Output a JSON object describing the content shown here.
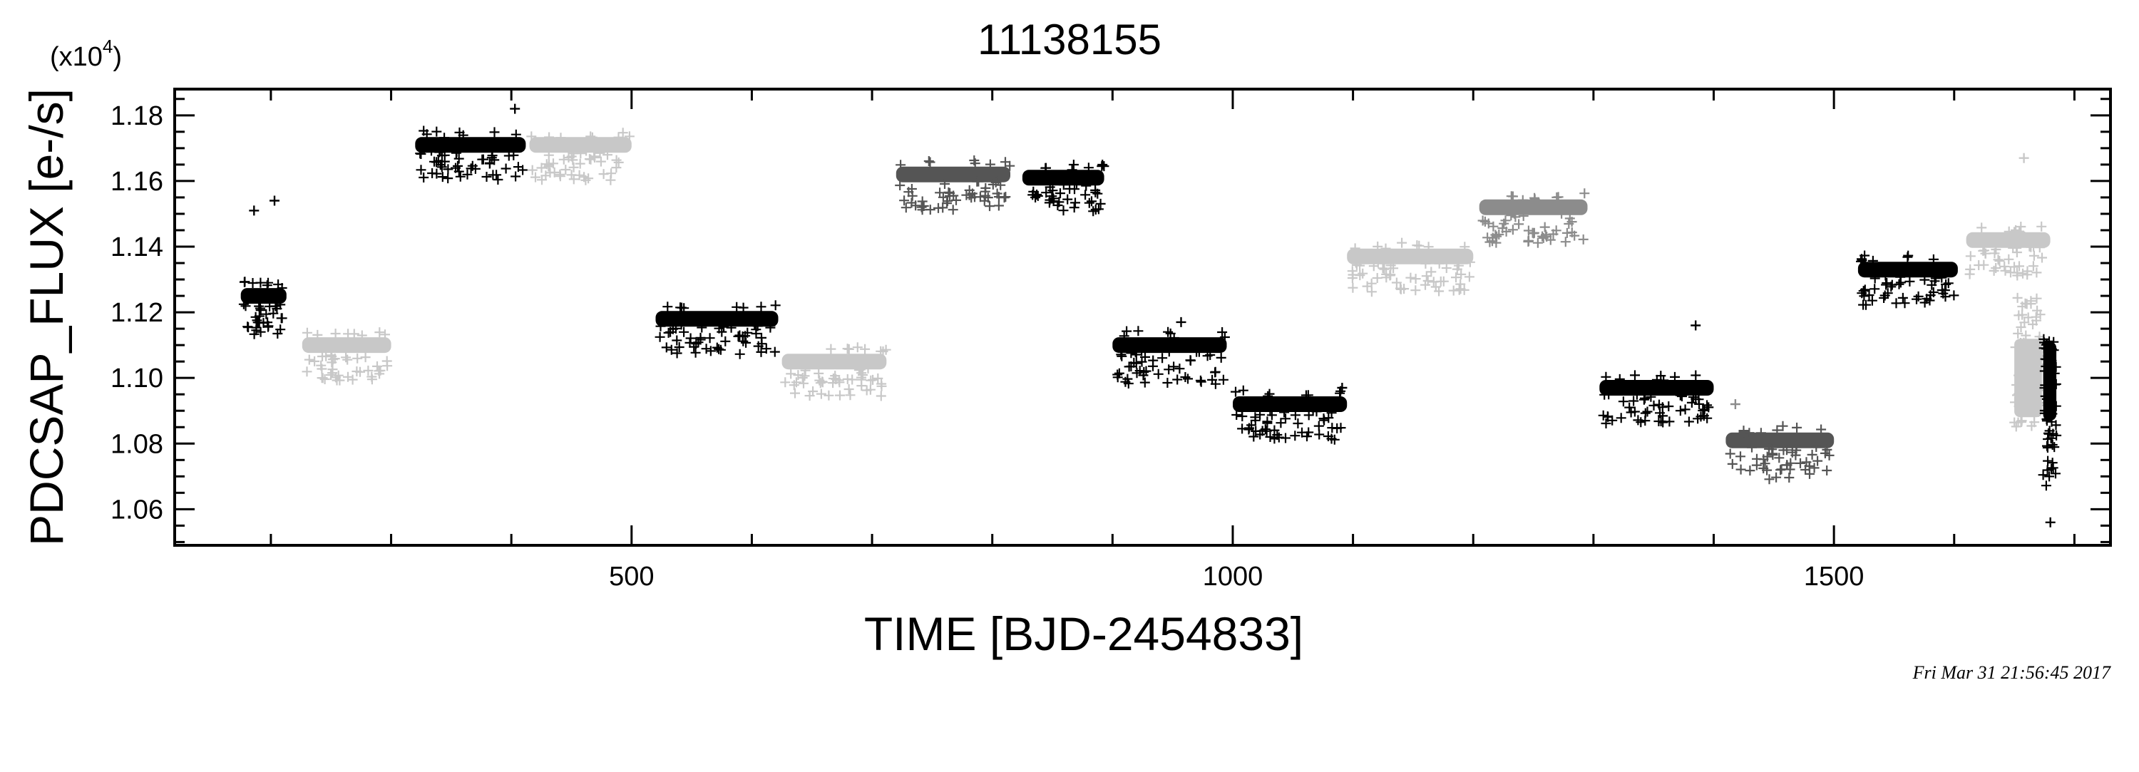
{
  "chart_data": {
    "type": "scatter",
    "title": "11138155",
    "xlabel": "TIME [BJD-2454833]",
    "ylabel": "PDCSAP_FLUX [e-/s]",
    "y_scale_label": "(x10",
    "y_scale_exponent": "4",
    "y_scale_close": ")",
    "timestamp": "Fri Mar 31 21:56:45 2017",
    "xlim": [
      120,
      1730
    ],
    "ylim": [
      1.049,
      1.188
    ],
    "x_ticks": [
      500,
      1000,
      1500
    ],
    "x_tick_labels": [
      "500",
      "1000",
      "1500"
    ],
    "y_ticks": [
      1.06,
      1.08,
      1.1,
      1.12,
      1.14,
      1.16,
      1.18
    ],
    "y_tick_labels": [
      "1.06",
      "1.08",
      "1.10",
      "1.12",
      "1.14",
      "1.16",
      "1.18"
    ],
    "grid": false,
    "legend": "none",
    "marker": "plus",
    "colors": {
      "black": "#000000",
      "dark_gray": "#555555",
      "mid_gray": "#8c8c8c",
      "light_gray": "#c8c8c8"
    },
    "quarters": [
      {
        "x_start": 175,
        "x_end": 213,
        "level": 1.125,
        "spread_low": 1.114,
        "color": "black"
      },
      {
        "x_start": 226,
        "x_end": 300,
        "level": 1.11,
        "spread_low": 1.1,
        "color": "light_gray"
      },
      {
        "x_start": 320,
        "x_end": 412,
        "level": 1.171,
        "spread_low": 1.161,
        "color": "black"
      },
      {
        "x_start": 415,
        "x_end": 500,
        "level": 1.171,
        "spread_low": 1.161,
        "color": "light_gray"
      },
      {
        "x_start": 520,
        "x_end": 622,
        "level": 1.118,
        "spread_low": 1.108,
        "color": "black"
      },
      {
        "x_start": 625,
        "x_end": 712,
        "level": 1.105,
        "spread_low": 1.095,
        "color": "light_gray"
      },
      {
        "x_start": 720,
        "x_end": 815,
        "level": 1.162,
        "spread_low": 1.152,
        "color": "dark_gray"
      },
      {
        "x_start": 825,
        "x_end": 893,
        "level": 1.161,
        "spread_low": 1.151,
        "color": "black"
      },
      {
        "x_start": 900,
        "x_end": 995,
        "level": 1.11,
        "spread_low": 1.099,
        "color": "black"
      },
      {
        "x_start": 1000,
        "x_end": 1095,
        "level": 1.092,
        "spread_low": 1.082,
        "color": "black"
      },
      {
        "x_start": 1095,
        "x_end": 1200,
        "level": 1.137,
        "spread_low": 1.127,
        "color": "light_gray"
      },
      {
        "x_start": 1205,
        "x_end": 1295,
        "level": 1.152,
        "spread_low": 1.142,
        "color": "mid_gray"
      },
      {
        "x_start": 1305,
        "x_end": 1400,
        "level": 1.097,
        "spread_low": 1.087,
        "color": "black"
      },
      {
        "x_start": 1410,
        "x_end": 1500,
        "level": 1.081,
        "spread_low": 1.07,
        "color": "dark_gray"
      },
      {
        "x_start": 1520,
        "x_end": 1603,
        "level": 1.133,
        "spread_low": 1.123,
        "color": "black"
      },
      {
        "x_start": 1610,
        "x_end": 1680,
        "level": 1.142,
        "spread_low": 1.132,
        "color": "light_gray"
      }
    ],
    "outliers": [
      {
        "x": 186,
        "y": 1.151,
        "color": "black"
      },
      {
        "x": 203,
        "y": 1.154,
        "color": "black"
      },
      {
        "x": 403,
        "y": 1.182,
        "color": "black"
      },
      {
        "x": 957,
        "y": 1.117,
        "color": "black"
      },
      {
        "x": 1091,
        "y": 1.097,
        "color": "black"
      },
      {
        "x": 1385,
        "y": 1.116,
        "color": "black"
      },
      {
        "x": 1418,
        "y": 1.092,
        "color": "mid_gray"
      },
      {
        "x": 1658,
        "y": 1.167,
        "color": "light_gray"
      },
      {
        "x": 1680,
        "y": 1.056,
        "color": "black"
      }
    ],
    "tail_segments": [
      {
        "x_start": 1650,
        "x_end": 1673,
        "y_min": 1.085,
        "y_max": 1.125,
        "center": 1.1,
        "color": "light_gray"
      },
      {
        "x_start": 1674,
        "x_end": 1685,
        "y_min": 1.067,
        "y_max": 1.112,
        "center": 1.099,
        "color": "black"
      }
    ]
  }
}
